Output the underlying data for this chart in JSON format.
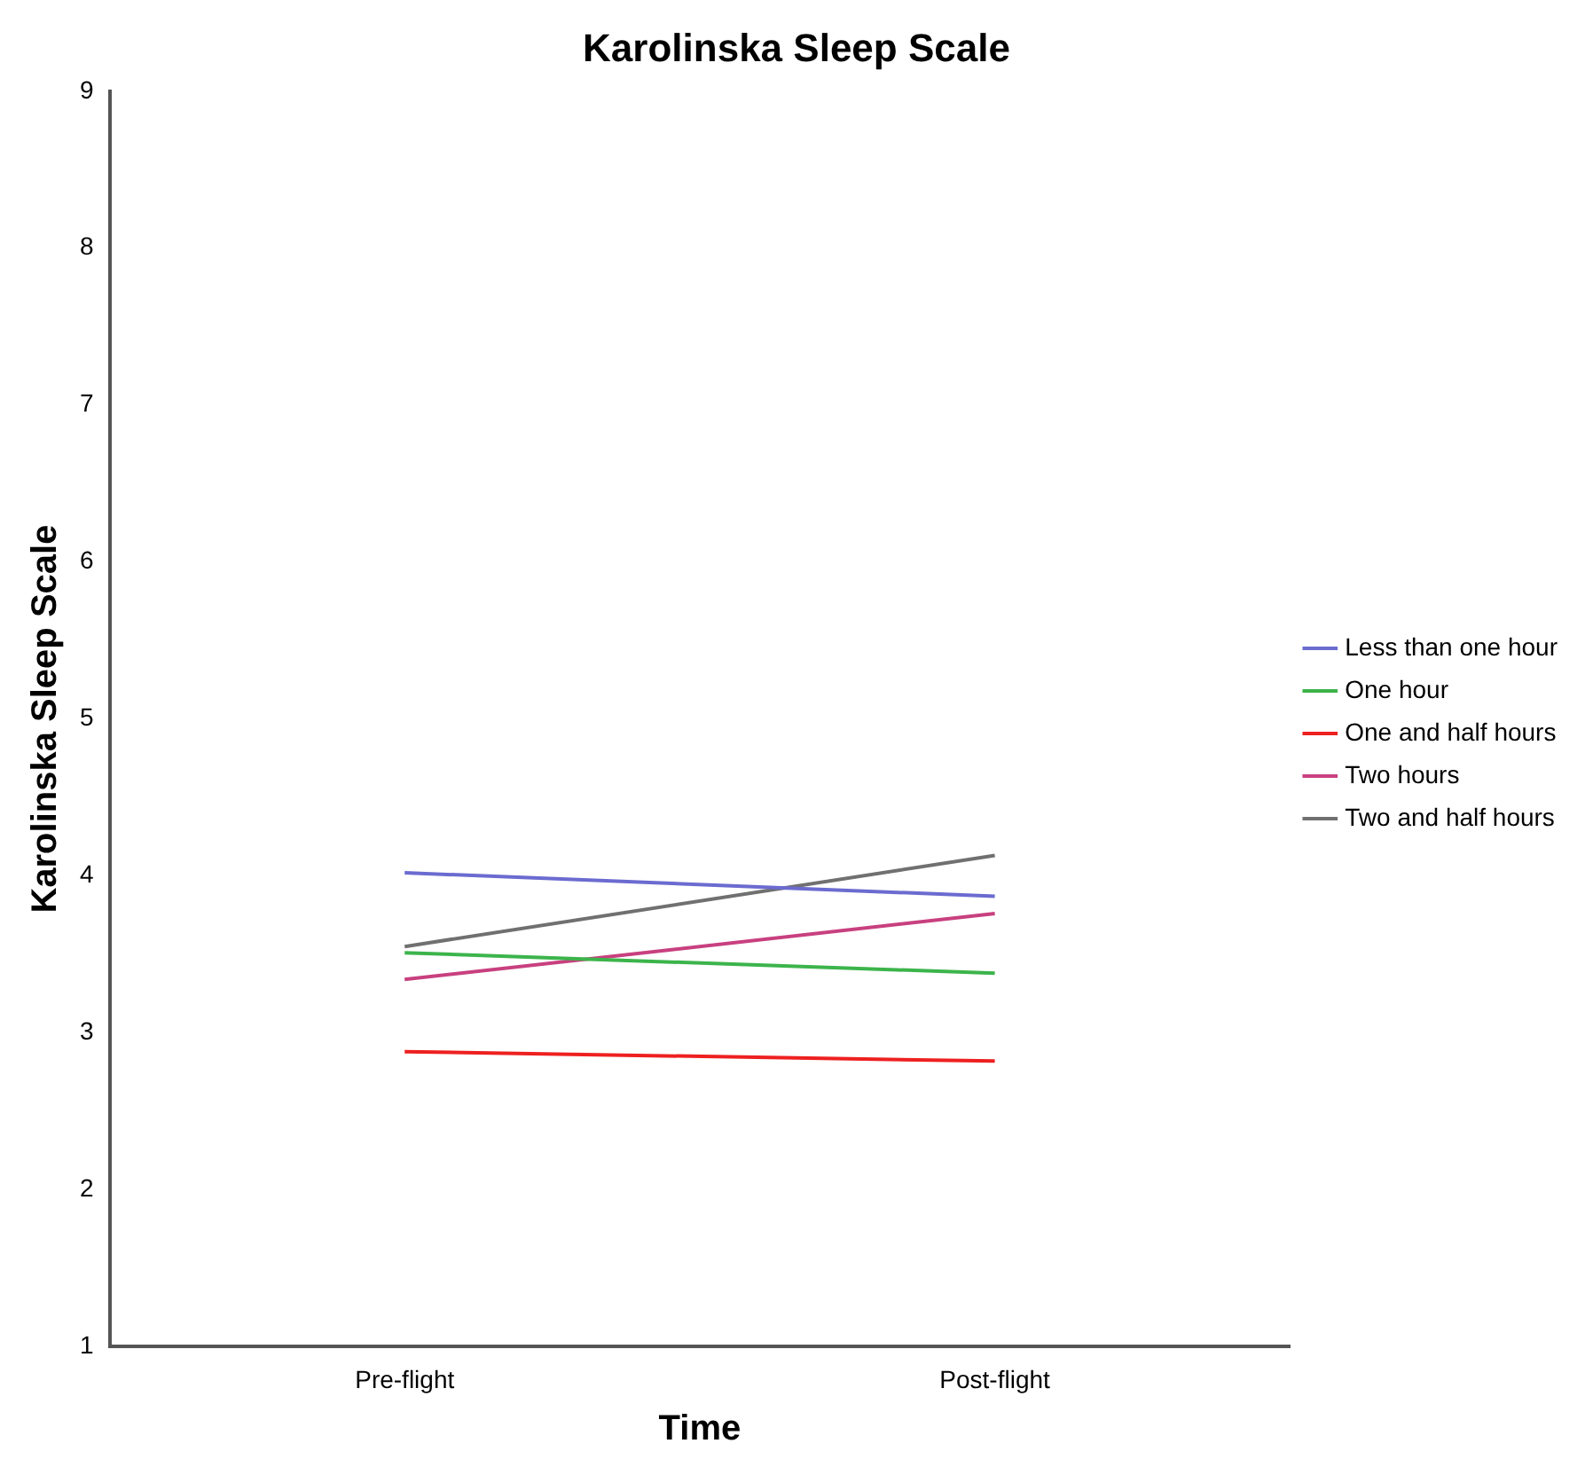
{
  "chart_data": {
    "type": "line",
    "title": "Karolinska Sleep Scale",
    "xlabel": "Time",
    "ylabel": "Karolinska Sleep Scale",
    "categories": [
      "Pre-flight",
      "Post-flight"
    ],
    "series": [
      {
        "name": "Less than one hour",
        "color": "#6b6bd0",
        "values": [
          4.02,
          3.87
        ]
      },
      {
        "name": "One hour",
        "color": "#3cb44b",
        "values": [
          3.51,
          3.38
        ]
      },
      {
        "name": "One and half hours",
        "color": "#ee2020",
        "values": [
          2.88,
          2.82
        ]
      },
      {
        "name": "Two hours",
        "color": "#c8407f",
        "values": [
          3.34,
          3.76
        ]
      },
      {
        "name": "Two and half hours",
        "color": "#707070",
        "values": [
          3.55,
          4.13
        ]
      }
    ],
    "ylim": [
      1,
      9
    ],
    "yticks": [
      1,
      2,
      3,
      4,
      5,
      6,
      7,
      8,
      9
    ],
    "grid": false,
    "legend": "right",
    "marker": "none",
    "line_style": "solid"
  }
}
